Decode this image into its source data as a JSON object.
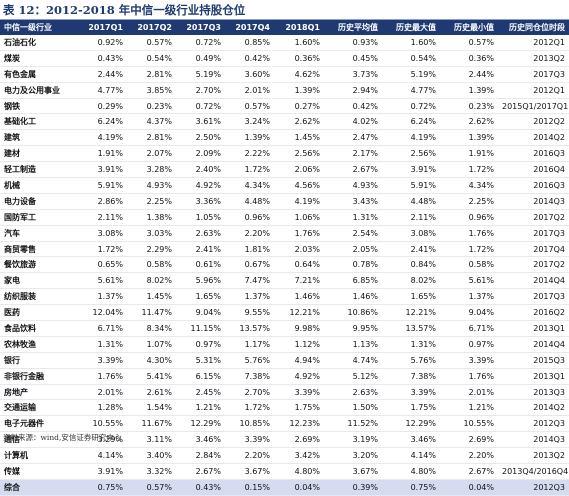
{
  "title": "表 12：2012-2018 年中信一级行业持股仓位",
  "columns": [
    "中信一级行业",
    "2017Q1",
    "2017Q2",
    "2017Q3",
    "2017Q4",
    "2018Q1",
    "历史平均值",
    "历史最大值",
    "历史最小值",
    "历史同仓位时段"
  ],
  "rows": [
    [
      "石油石化",
      "0.92%",
      "0.57%",
      "0.72%",
      "0.85%",
      "1.60%",
      "0.93%",
      "1.60%",
      "0.57%",
      "2012Q1"
    ],
    [
      "煤炭",
      "0.43%",
      "0.54%",
      "0.49%",
      "0.42%",
      "0.36%",
      "0.45%",
      "0.54%",
      "0.36%",
      "2013Q2"
    ],
    [
      "有色金属",
      "2.44%",
      "2.81%",
      "5.19%",
      "3.60%",
      "4.62%",
      "3.73%",
      "5.19%",
      "2.44%",
      "2017Q3"
    ],
    [
      "电力及公用事业",
      "4.77%",
      "3.85%",
      "2.70%",
      "2.01%",
      "1.39%",
      "2.94%",
      "4.77%",
      "1.39%",
      "2012Q1"
    ],
    [
      "钢铁",
      "0.29%",
      "0.23%",
      "0.72%",
      "0.57%",
      "0.27%",
      "0.42%",
      "0.72%",
      "0.23%",
      "2015Q1/2017Q1"
    ],
    [
      "基础化工",
      "6.24%",
      "4.37%",
      "3.61%",
      "3.24%",
      "2.62%",
      "4.02%",
      "6.24%",
      "2.62%",
      "2012Q2"
    ],
    [
      "建筑",
      "4.19%",
      "2.81%",
      "2.50%",
      "1.39%",
      "1.45%",
      "2.47%",
      "4.19%",
      "1.39%",
      "2014Q2"
    ],
    [
      "建材",
      "1.91%",
      "2.07%",
      "2.09%",
      "2.22%",
      "2.56%",
      "2.17%",
      "2.56%",
      "1.91%",
      "2016Q3"
    ],
    [
      "轻工制造",
      "3.91%",
      "3.28%",
      "2.40%",
      "1.72%",
      "2.06%",
      "2.67%",
      "3.91%",
      "1.72%",
      "2016Q4"
    ],
    [
      "机械",
      "5.91%",
      "4.93%",
      "4.92%",
      "4.34%",
      "4.56%",
      "4.93%",
      "5.91%",
      "4.34%",
      "2016Q3"
    ],
    [
      "电力设备",
      "2.86%",
      "2.25%",
      "3.36%",
      "4.48%",
      "4.19%",
      "3.43%",
      "4.48%",
      "2.25%",
      "2014Q3"
    ],
    [
      "国防军工",
      "2.11%",
      "1.38%",
      "1.05%",
      "0.96%",
      "1.06%",
      "1.31%",
      "2.11%",
      "0.96%",
      "2017Q2"
    ],
    [
      "汽车",
      "3.08%",
      "3.03%",
      "2.63%",
      "2.20%",
      "1.76%",
      "2.54%",
      "3.08%",
      "1.76%",
      "2017Q3"
    ],
    [
      "商贸零售",
      "1.72%",
      "2.29%",
      "2.41%",
      "1.81%",
      "2.03%",
      "2.05%",
      "2.41%",
      "1.72%",
      "2017Q4"
    ],
    [
      "餐饮旅游",
      "0.65%",
      "0.58%",
      "0.61%",
      "0.67%",
      "0.64%",
      "0.78%",
      "0.84%",
      "0.58%",
      "2017Q2"
    ],
    [
      "家电",
      "5.61%",
      "8.02%",
      "5.96%",
      "7.47%",
      "7.21%",
      "6.85%",
      "8.02%",
      "5.61%",
      "2014Q4"
    ],
    [
      "纺织服装",
      "1.37%",
      "1.45%",
      "1.65%",
      "1.37%",
      "1.46%",
      "1.46%",
      "1.65%",
      "1.37%",
      "2017Q3"
    ],
    [
      "医药",
      "12.04%",
      "11.47%",
      "9.04%",
      "9.55%",
      "12.21%",
      "10.86%",
      "12.21%",
      "9.04%",
      "2016Q2"
    ],
    [
      "食品饮料",
      "6.71%",
      "8.34%",
      "11.15%",
      "13.57%",
      "9.98%",
      "9.95%",
      "13.57%",
      "6.71%",
      "2013Q1"
    ],
    [
      "农林牧渔",
      "1.31%",
      "1.07%",
      "0.97%",
      "1.17%",
      "1.12%",
      "1.13%",
      "1.31%",
      "0.97%",
      "2014Q4"
    ],
    [
      "银行",
      "3.39%",
      "4.30%",
      "5.31%",
      "5.76%",
      "4.94%",
      "4.74%",
      "5.76%",
      "3.39%",
      "2015Q3"
    ],
    [
      "非银行金融",
      "1.76%",
      "5.41%",
      "6.15%",
      "7.38%",
      "4.92%",
      "5.12%",
      "7.38%",
      "1.76%",
      "2013Q1"
    ],
    [
      "房地产",
      "2.01%",
      "2.61%",
      "2.45%",
      "2.70%",
      "3.39%",
      "2.63%",
      "3.39%",
      "2.01%",
      "2013Q3"
    ],
    [
      "交通运输",
      "1.28%",
      "1.54%",
      "1.21%",
      "1.72%",
      "1.75%",
      "1.50%",
      "1.75%",
      "1.21%",
      "2014Q2"
    ],
    [
      "电子元器件",
      "10.55%",
      "11.67%",
      "12.29%",
      "10.85%",
      "12.23%",
      "11.52%",
      "12.29%",
      "10.55%",
      "2012Q3"
    ],
    [
      "通信",
      "3.29%",
      "3.11%",
      "3.46%",
      "3.39%",
      "2.69%",
      "3.19%",
      "3.46%",
      "2.69%",
      "2014Q3"
    ],
    [
      "计算机",
      "4.14%",
      "3.40%",
      "2.84%",
      "2.20%",
      "3.42%",
      "3.20%",
      "4.14%",
      "2.20%",
      "2013Q2"
    ],
    [
      "传媒",
      "3.91%",
      "3.32%",
      "2.67%",
      "3.67%",
      "4.80%",
      "3.67%",
      "4.80%",
      "2.67%",
      "2013Q4/2016Q4"
    ],
    [
      "综合",
      "0.75%",
      "0.57%",
      "0.43%",
      "0.15%",
      "0.04%",
      "0.39%",
      "0.75%",
      "0.04%",
      "2012Q3"
    ]
  ],
  "highlight_row_index": 28,
  "source": "资料来源：wind,安信证券研究中心",
  "colors": {
    "header_bg": "#1f3a72",
    "header_text": "#ffffff",
    "highlight_row": "#d5dcf0",
    "title": "#1f3a72"
  }
}
